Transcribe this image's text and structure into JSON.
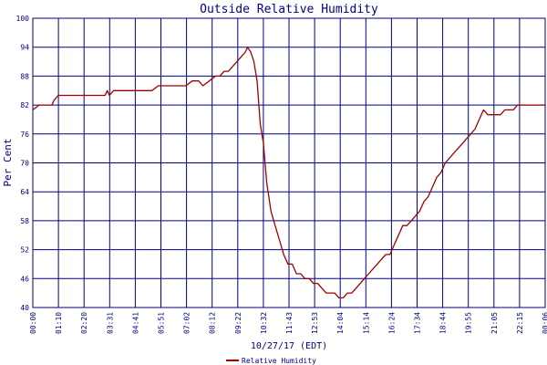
{
  "chart_data": {
    "type": "line",
    "title": "Outside Relative Humidity",
    "xlabel": "10/27/17 (EDT)",
    "ylabel": "Per Cent",
    "ylim": [
      40,
      100
    ],
    "yticks": [
      "40",
      "46",
      "52",
      "58",
      "64",
      "70",
      "76",
      "82",
      "88",
      "94",
      "100"
    ],
    "xticks": [
      "00:00",
      "01:10",
      "02:20",
      "03:31",
      "04:41",
      "05:51",
      "07:02",
      "08:12",
      "09:22",
      "10:32",
      "11:43",
      "12:53",
      "14:04",
      "15:14",
      "16:24",
      "17:34",
      "18:44",
      "19:55",
      "21:05",
      "22:15",
      "00:06"
    ],
    "grid": true,
    "legend_position": "bottom-left",
    "colors": {
      "series": "#a00000",
      "grid": "#000080",
      "text": "#000080",
      "background": "#ffffff"
    },
    "series": [
      {
        "name": "Relative Humidity",
        "x_hours": [
          0,
          0.3,
          0.6,
          0.9,
          1.0,
          1.2,
          1.6,
          2.0,
          2.4,
          2.8,
          3.2,
          3.4,
          3.5,
          3.6,
          3.8,
          4.2,
          4.8,
          5.4,
          5.6,
          5.9,
          6.2,
          6.6,
          7.0,
          7.2,
          7.5,
          7.8,
          8.0,
          8.3,
          8.6,
          8.8,
          9.0,
          9.2,
          9.4,
          9.6,
          9.8,
          10.0,
          10.1,
          10.25,
          10.4,
          10.55,
          10.7,
          10.85,
          11.0,
          11.2,
          11.4,
          11.6,
          11.8,
          12.0,
          12.2,
          12.4,
          12.6,
          12.8,
          13.0,
          13.2,
          13.4,
          13.6,
          13.8,
          14.0,
          14.2,
          14.4,
          14.6,
          14.8,
          15.0,
          15.2,
          15.4,
          15.6,
          15.8,
          16.0,
          16.2,
          16.4,
          16.6,
          16.8,
          17.0,
          17.2,
          17.4,
          17.6,
          17.8,
          18.0,
          18.2,
          18.4,
          18.6,
          18.8,
          19.0,
          19.2,
          19.4,
          19.6,
          19.8,
          20.0,
          20.2,
          20.4,
          20.6,
          20.8,
          21.0,
          21.1,
          21.2,
          21.4,
          21.6,
          21.8,
          22.0,
          22.2,
          22.4,
          22.6,
          22.8,
          23.0,
          23.2,
          23.4,
          23.6,
          23.8,
          24.0,
          24.1
        ],
        "values": [
          81,
          82,
          82,
          82,
          83,
          84,
          84,
          84,
          84,
          84,
          84,
          84,
          85,
          84,
          85,
          85,
          85,
          85,
          85,
          86,
          86,
          86,
          86,
          86,
          87,
          87,
          86,
          87,
          88,
          88,
          89,
          89,
          90,
          91,
          92,
          93,
          94,
          93,
          91,
          87,
          78,
          74,
          66,
          60,
          57,
          54,
          51,
          49,
          49,
          47,
          47,
          46,
          46,
          45,
          45,
          44,
          43,
          43,
          43,
          42,
          42,
          43,
          43,
          44,
          45,
          46,
          47,
          48,
          49,
          50,
          51,
          51,
          53,
          55,
          57,
          57,
          58,
          59,
          60,
          62,
          63,
          65,
          67,
          68,
          70,
          71,
          72,
          73,
          74,
          75,
          76,
          77,
          79,
          80,
          81,
          80,
          80,
          80,
          80,
          81,
          81,
          81,
          82,
          82,
          82,
          82,
          82,
          82,
          82,
          82
        ]
      }
    ]
  }
}
